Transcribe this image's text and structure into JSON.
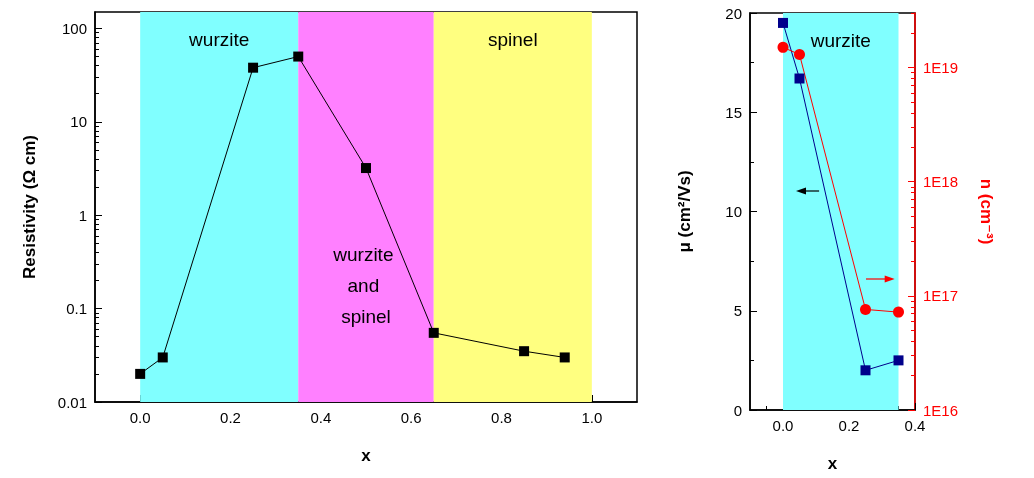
{
  "chart_data": [
    {
      "type": "line",
      "xlabel": "x",
      "ylabel": "Resistivity (Ω cm)",
      "x": [
        0,
        0.05,
        0.25,
        0.35,
        0.5,
        0.65,
        0.85,
        0.94
      ],
      "series": [
        {
          "color": "#000000",
          "values": [
            0.02,
            0.03,
            38,
            50,
            3.2,
            0.055,
            0.035,
            0.03
          ]
        }
      ],
      "xlim": [
        -0.1,
        1.1
      ],
      "xticks": [
        {
          "value": 0,
          "label": "0.0"
        },
        {
          "value": 0.2,
          "label": "0.2"
        },
        {
          "value": 0.4,
          "label": "0.4"
        },
        {
          "value": 0.6,
          "label": "0.6"
        },
        {
          "value": 0.8,
          "label": "0.8"
        },
        {
          "value": 1,
          "label": "1.0"
        }
      ],
      "ylim": [
        0.01,
        150
      ],
      "yticks": [
        0.01,
        0.1,
        1,
        10,
        100
      ],
      "log": "y",
      "grid": false,
      "marker": "square",
      "line_style": "solid",
      "bands": [
        {
          "axis": "x",
          "from": 0,
          "to": 0.35,
          "label": "wurzite",
          "color": "#80ffff"
        },
        {
          "axis": "x",
          "from": 0.35,
          "to": 0.65,
          "label": "wurzite and spinel",
          "color": "#ff80ff"
        },
        {
          "axis": "x",
          "from": 0.65,
          "to": 1,
          "label": "spinel",
          "color": "#ffff80"
        }
      ]
    },
    {
      "type": "line",
      "xlabel": "x",
      "ylabel": "μ (cm²/Vs)",
      "y2label": "n (cm⁻³)",
      "x": [
        0,
        0.05,
        0.25,
        0.35
      ],
      "series": [
        {
          "color": "#00008b",
          "values": [
            19.5,
            16.7,
            2.0,
            2.5
          ],
          "marker": "square"
        },
        {
          "color": "#ff0000",
          "values": [
            1.5e+19,
            1.3e+19,
            7.6e+16,
            7.2e+16
          ],
          "axis": "y2",
          "marker": "circle"
        }
      ],
      "xlim": [
        -0.1,
        0.4
      ],
      "xticks": [
        {
          "value": 0,
          "label": "0.0"
        },
        {
          "value": 0.2,
          "label": "0.2"
        },
        {
          "value": 0.4,
          "label": "0.4"
        }
      ],
      "ylim": [
        0,
        20
      ],
      "yticks": [
        0,
        5,
        10,
        15,
        20
      ],
      "y2lim": [
        1e+16,
        3e+19
      ],
      "y2ticks": [
        {
          "value": 1e+16,
          "label": "1E16"
        },
        {
          "value": 1e+17,
          "label": "1E17"
        },
        {
          "value": 1e+18,
          "label": "1E18"
        },
        {
          "value": 1e+19,
          "label": "1E19"
        }
      ],
      "log": "y2",
      "grid": false,
      "line_style": "solid",
      "bands": [
        {
          "axis": "x",
          "from": 0,
          "to": 0.35,
          "label": "wurzite",
          "color": "#80ffff"
        }
      ]
    }
  ]
}
